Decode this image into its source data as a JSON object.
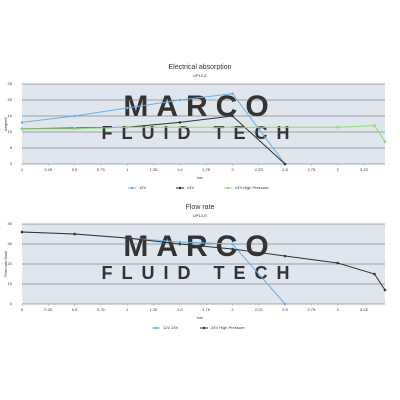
{
  "chart_data": [
    {
      "type": "line",
      "title": "Electrical absorption",
      "subtitle": "UP12-E",
      "ylabel": "Ampere",
      "xlabel": "bar",
      "watermark": [
        "MARCO",
        "FLUID TECH"
      ],
      "xlim": [
        0,
        3.45
      ],
      "ylim": [
        0,
        25
      ],
      "xticks": [
        0,
        0.25,
        0.5,
        0.75,
        1,
        1.25,
        1.5,
        1.75,
        2,
        2.25,
        2.5,
        2.75,
        3,
        3.25
      ],
      "yticks": [
        0,
        5,
        10,
        15,
        20,
        25
      ],
      "grid": true,
      "series": [
        {
          "name": "12V",
          "color": "#6aaee8",
          "x": [
            0,
            0.5,
            1,
            1.5,
            2,
            2.5
          ],
          "values": [
            13,
            15,
            17.5,
            20,
            22,
            0
          ]
        },
        {
          "name": "24V",
          "color": "#333333",
          "x": [
            0,
            1,
            1.5,
            2,
            2.5
          ],
          "values": [
            11,
            11.5,
            13,
            15,
            0
          ]
        },
        {
          "name": "24V High Pressure",
          "color": "#8fdc6a",
          "x": [
            0,
            0.5,
            1,
            1.5,
            2,
            2.5,
            3,
            3.35,
            3.45
          ],
          "values": [
            11,
            11,
            11.5,
            11.5,
            11.5,
            11.5,
            11.5,
            12,
            7
          ]
        }
      ]
    },
    {
      "type": "line",
      "title": "Flow rate",
      "subtitle": "UP12-E",
      "ylabel": "Flow rate l/min",
      "xlabel": "bar",
      "watermark": [
        "MARCO",
        "FLUID TECH"
      ],
      "xlim": [
        0,
        3.45
      ],
      "ylim": [
        0,
        40
      ],
      "xticks": [
        0,
        0.25,
        0.5,
        0.75,
        1,
        1.25,
        1.5,
        1.75,
        2,
        2.25,
        2.5,
        2.75,
        3,
        3.25
      ],
      "yticks": [
        0,
        10,
        20,
        30,
        40
      ],
      "grid": true,
      "series": [
        {
          "name": "12V 24V",
          "color": "#6aaee8",
          "x": [
            0,
            0.5,
            1,
            1.5,
            2,
            2.5
          ],
          "values": [
            36,
            35,
            33,
            31,
            30,
            0
          ]
        },
        {
          "name": "24V High Pressure",
          "color": "#333333",
          "x": [
            0,
            0.5,
            1,
            1.5,
            2,
            2.5,
            3,
            3.35,
            3.45
          ],
          "values": [
            36,
            35,
            33,
            30,
            27.5,
            24,
            20.5,
            15,
            7
          ]
        }
      ]
    }
  ]
}
